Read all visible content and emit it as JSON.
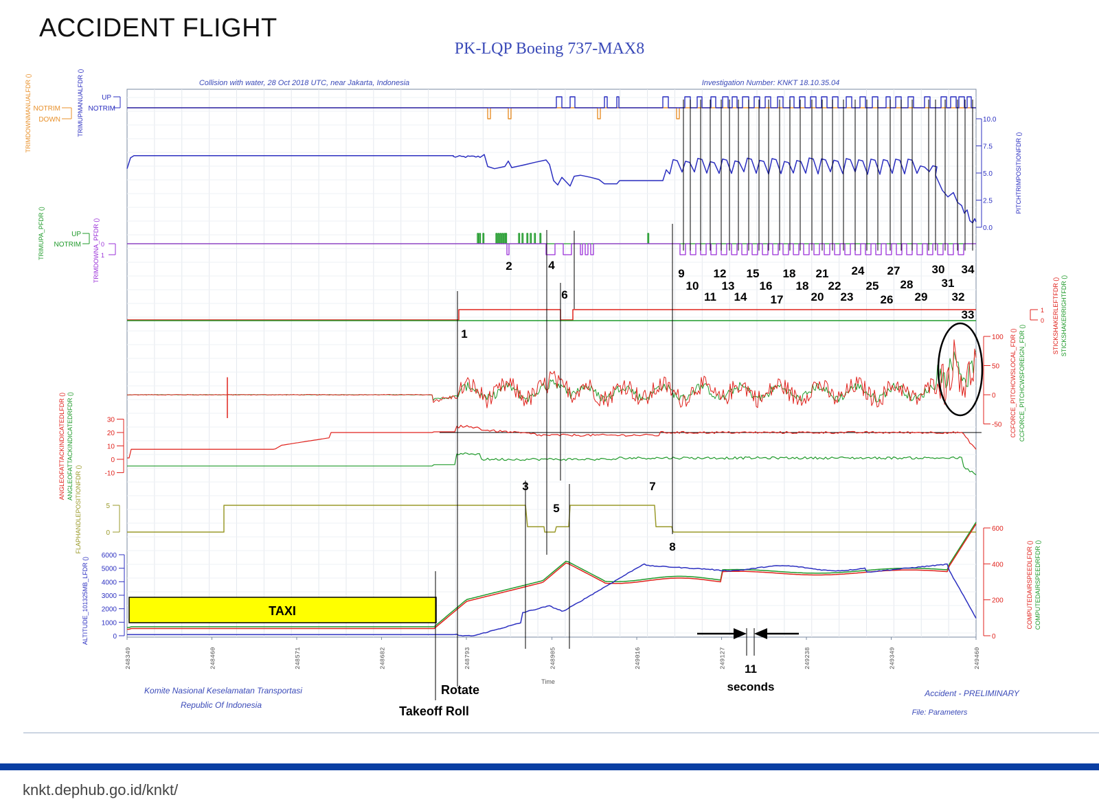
{
  "slide": {
    "title": "ACCIDENT FLIGHT",
    "footer_url": "knkt.dephub.go.id/knkt/"
  },
  "chart_data": {
    "type": "line",
    "title": "PK-LQP Boeing 737-MAX8",
    "subtitle_left": "Collision with water, 28 Oct 2018 UTC, near Jakarta, Indonesia",
    "subtitle_right": "Investigation Number: KNKT 18.10.35.04",
    "footer_left_1": "Komite Nasional Keselamatan Transportasi",
    "footer_left_2": "Republic Of Indonesia",
    "footer_right_1": "Accident - PRELIMINARY",
    "footer_right_2": "File: Parameters",
    "xlabel": "Time",
    "xlim": [
      248349,
      249460
    ],
    "x_ticks": [
      "248349",
      "248460",
      "248571",
      "248682",
      "248793",
      "248905",
      "249016",
      "249127",
      "249238",
      "249349",
      "249460"
    ],
    "colors": {
      "orange": "#e8902a",
      "blue": "#2b2fc0",
      "green": "#1f9a2a",
      "red": "#e0221c",
      "purple": "#9a2fd8",
      "olive": "#9a9a2a",
      "frame": "#7a8aa0"
    },
    "panels": [
      {
        "name": "trim-manual",
        "series": [
          "TRIMDOWNMANUALFDR ()",
          "TRIMUPMANUALFDR ()"
        ],
        "states": [
          "UP",
          "NOTRIM",
          "DOWN"
        ]
      },
      {
        "name": "pitch-trim",
        "series": [
          "PITCHTRIMPOSITIONFDR ()"
        ],
        "ylim": [
          0,
          10
        ],
        "ticks": [
          "10.0",
          "7.5",
          "5.0",
          "2.5",
          "0.0"
        ]
      },
      {
        "name": "trim-auto",
        "series": [
          "TRIMUPA_PFDR ()",
          "TRIMDOWNA_PFDR ()"
        ],
        "states": [
          "UP",
          "NOTRIM"
        ],
        "aux_ticks": [
          "0",
          "1"
        ]
      },
      {
        "name": "stick-shaker",
        "series": [
          "STICKSHAKERLEFTFDR ()",
          "STICKSHAKERRIGHTFDR ()"
        ],
        "aux_ticks": [
          "1",
          "0"
        ]
      },
      {
        "name": "column-force",
        "series": [
          "CCFORCE_PITCHCWSLOCAL_FDR ()",
          "CCFORCE_PITCHCWSFOREIGN_FDR ()"
        ],
        "ylim": [
          -50,
          100
        ],
        "ticks": [
          "100",
          "50",
          "0",
          "-50"
        ]
      },
      {
        "name": "angle-of-attack",
        "series": [
          "ANGLEOFATTACKINDICATEDLFDR ()",
          "ANGLEOFATTACKINDICATEDRFDR ()"
        ],
        "ylim": [
          -10,
          30
        ],
        "ticks": [
          "30",
          "20",
          "10",
          "0",
          "-10"
        ]
      },
      {
        "name": "flap-handle",
        "series": [
          "FLAPHANDLEPOSITIONFDR ()"
        ],
        "ylim": [
          0,
          5
        ],
        "ticks": [
          "5",
          "0"
        ]
      },
      {
        "name": "altitude-airspeed",
        "series": [
          "ALTITUDE_101325MB_LFDR ()",
          "COMPUTEDAIRSPEEDLFDR ()",
          "COMPUTEDAIRSPEEDRFDR ()"
        ],
        "ylim": [
          0,
          6000
        ],
        "ticks": [
          "6000",
          "5000",
          "4000",
          "3000",
          "2000",
          "1000",
          "0"
        ],
        "right_ylim": [
          0,
          600
        ],
        "right_ticks": [
          "600",
          "400",
          "200",
          "0"
        ]
      }
    ],
    "left_axis_labels": [
      "TRIMDOWNMANUALFDR ()",
      "TRIMUPMANUALFDR ()",
      "TRIMUPA_PFDR ()",
      "TRIMDOWNA_PFDR ()",
      "ANGLEOFATTACKINDICATEDLFDR ()",
      "ANGLEOFATTACKINDICATEDRFDR ()",
      "FLAPHANDLEPOSITIONFDR ()",
      "ALTITUDE_101325MB_LFDR ()"
    ],
    "right_axis_labels": [
      "PITCHTRIMPOSITIONFDR ()",
      "STICKSHAKERLEFTFDR ()",
      "STICKSHAKERRIGHTFDR ()",
      "CCFORCE_PITCHCWSLOCAL_FDR ()",
      "CCFORCE_PITCHCWSFOREIGN_FDR ()",
      "COMPUTEDAIRSPEEDLFDR ()",
      "COMPUTEDAIRSPEEDRFDR ()"
    ],
    "state_labels": {
      "up": "UP",
      "notrim": "NOTRIM",
      "down": "DOWN"
    },
    "phases": {
      "taxi": "TAXI",
      "rotate": "Rotate",
      "takeoff_roll": "Takeoff Roll",
      "gap_value": "11",
      "gap_unit": "seconds"
    },
    "events": [
      "1",
      "2",
      "3",
      "4",
      "5",
      "6",
      "7",
      "8",
      "9",
      "10",
      "11",
      "12",
      "13",
      "14",
      "15",
      "16",
      "17",
      "18",
      "18",
      "20",
      "21",
      "22",
      "23",
      "24",
      "25",
      "26",
      "27",
      "28",
      "29",
      "30",
      "31",
      "32",
      "33",
      "34"
    ]
  }
}
